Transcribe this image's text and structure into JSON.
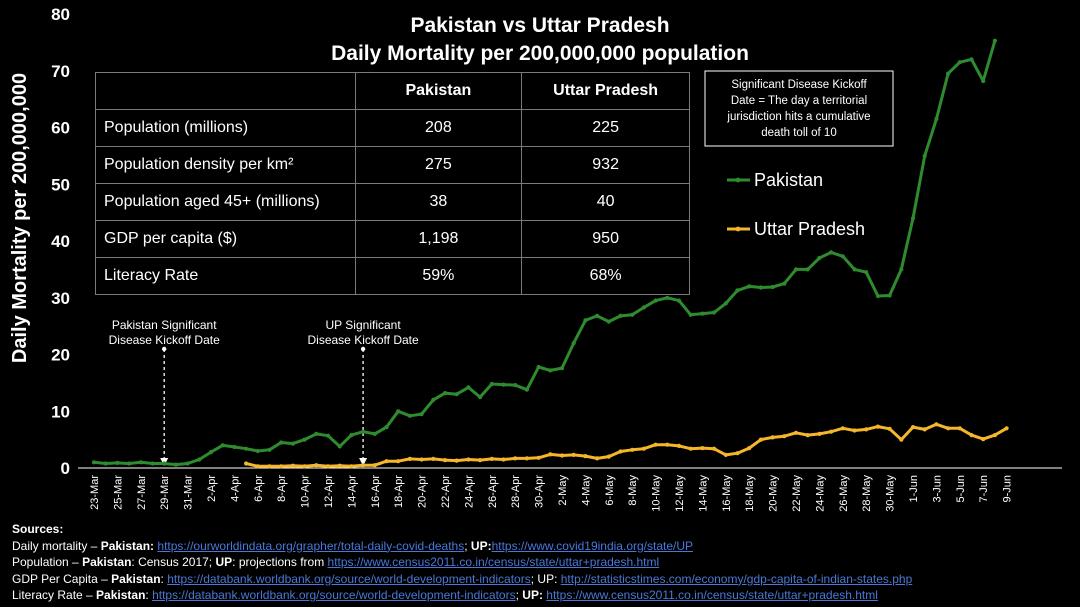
{
  "chart_data": {
    "type": "line",
    "title": "Pakistan vs Uttar Pradesh",
    "subtitle": "Daily Mortality per 200,000,000 population",
    "ylabel": "Daily Mortality per 200,000,000",
    "xlabel": "",
    "ylim": [
      0,
      80
    ],
    "yticks": [
      0,
      10,
      20,
      30,
      40,
      50,
      60,
      70,
      80
    ],
    "x_start": "2020-03-23",
    "x_end": "2020-06-10",
    "x_tick_labels": [
      "23-Mar",
      "25-Mar",
      "27-Mar",
      "29-Mar",
      "31-Mar",
      "2-Apr",
      "4-Apr",
      "6-Apr",
      "8-Apr",
      "10-Apr",
      "12-Apr",
      "14-Apr",
      "16-Apr",
      "18-Apr",
      "20-Apr",
      "22-Apr",
      "24-Apr",
      "26-Apr",
      "28-Apr",
      "30-Apr",
      "2-May",
      "4-May",
      "6-May",
      "8-May",
      "10-May",
      "12-May",
      "14-May",
      "16-May",
      "18-May",
      "20-May",
      "22-May",
      "24-May",
      "26-May",
      "28-May",
      "30-May",
      "1-Jun",
      "3-Jun",
      "5-Jun",
      "7-Jun",
      "9-Jun"
    ],
    "grid": false,
    "legend_position": "right",
    "series": [
      {
        "name": "Pakistan",
        "color": "#2e8b2e",
        "start": "2020-03-23",
        "values": [
          1.0,
          0.8,
          0.9,
          0.8,
          1.0,
          0.8,
          0.8,
          0.6,
          0.8,
          1.5,
          2.8,
          4.0,
          3.7,
          3.4,
          3.0,
          3.2,
          4.5,
          4.3,
          5.0,
          6.0,
          5.7,
          3.8,
          5.8,
          6.4,
          6.0,
          7.2,
          10.0,
          9.2,
          9.5,
          12.0,
          13.2,
          13.0,
          14.2,
          12.5,
          14.8,
          14.7,
          14.6,
          13.8,
          17.8,
          17.2,
          17.6,
          22.0,
          26.0,
          26.8,
          25.8,
          26.8,
          27.0,
          28.3,
          29.5,
          30.0,
          29.5,
          27.0,
          27.2,
          27.4,
          29.0,
          31.3,
          32.0,
          31.8,
          31.9,
          32.5,
          35.0,
          35.0,
          37.0,
          38.0,
          37.3,
          35.0,
          34.5,
          30.3,
          30.4,
          35.0,
          44.0,
          55.0,
          61.5,
          69.5,
          71.5,
          72.0,
          68.2,
          75.3
        ]
      },
      {
        "name": "Uttar Pradesh",
        "color": "#f5b62a",
        "start": "2020-04-05",
        "values": [
          0.8,
          0.3,
          0.3,
          0.3,
          0.4,
          0.3,
          0.5,
          0.3,
          0.4,
          0.3,
          0.5,
          0.5,
          1.2,
          1.2,
          1.6,
          1.5,
          1.6,
          1.4,
          1.3,
          1.5,
          1.4,
          1.6,
          1.5,
          1.7,
          1.7,
          1.8,
          2.4,
          2.2,
          2.3,
          2.1,
          1.7,
          2.0,
          2.9,
          3.2,
          3.4,
          4.1,
          4.1,
          3.9,
          3.4,
          3.5,
          3.4,
          2.3,
          2.6,
          3.5,
          5.0,
          5.4,
          5.6,
          6.2,
          5.8,
          6.0,
          6.4,
          7.0,
          6.6,
          6.8,
          7.3,
          6.9,
          5.0,
          7.2,
          6.8,
          7.7,
          7.0,
          7.0,
          5.8,
          5.1,
          5.8,
          7.0
        ]
      }
    ],
    "annotations": [
      {
        "date": "2020-03-29",
        "text_lines": [
          "Pakistan Significant",
          "Disease Kickoff Date"
        ]
      },
      {
        "date": "2020-04-15",
        "text_lines": [
          "UP Significant",
          "Disease Kickoff Date"
        ]
      }
    ],
    "definition_box": [
      "Significant Disease Kickoff",
      "Date = The day a territorial",
      "jurisdiction hits a cumulative",
      "death toll of 10"
    ]
  },
  "table": {
    "headers": [
      "",
      "Pakistan",
      "Uttar Pradesh"
    ],
    "rows": [
      [
        "Population (millions)",
        "208",
        "225"
      ],
      [
        "Population density per km²",
        "275",
        "932"
      ],
      [
        "Population aged 45+ (millions)",
        "38",
        "40"
      ],
      [
        "GDP per capita ($)",
        "1,198",
        "950"
      ],
      [
        "Literacy Rate",
        "59%",
        "68%"
      ]
    ]
  },
  "sources": {
    "heading": "Sources:",
    "lines": [
      {
        "parts": [
          {
            "t": "Daily mortality – "
          },
          {
            "t": "Pakistan:",
            "b": true
          },
          {
            "t": " "
          },
          {
            "t": "https://ourworldindata.org/grapher/total-daily-covid-deaths",
            "link": true
          },
          {
            "t": "; "
          },
          {
            "t": "UP:",
            "b": true
          },
          {
            "t": "https://www.covid19india.org/state/UP",
            "link": true
          }
        ]
      },
      {
        "parts": [
          {
            "t": "Population – "
          },
          {
            "t": "Pakistan",
            "b": true
          },
          {
            "t": ": Census 2017; "
          },
          {
            "t": "UP",
            "b": true
          },
          {
            "t": ": projections from "
          },
          {
            "t": "https://www.census2011.co.in/census/state/uttar+pradesh.html",
            "link": true
          }
        ]
      },
      {
        "parts": [
          {
            "t": "GDP Per Capita – "
          },
          {
            "t": "Pakistan",
            "b": true
          },
          {
            "t": ": "
          },
          {
            "t": "https://databank.worldbank.org/source/world-development-indicators",
            "link": true
          },
          {
            "t": "; UP: "
          },
          {
            "t": "http://statisticstimes.com/economy/gdp-capita-of-indian-states.php",
            "link": true
          }
        ]
      },
      {
        "parts": [
          {
            "t": "Literacy Rate – "
          },
          {
            "t": "Pakistan",
            "b": true
          },
          {
            "t": ": "
          },
          {
            "t": "https://databank.worldbank.org/source/world-development-indicators",
            "link": true
          },
          {
            "t": "; "
          },
          {
            "t": "UP:",
            "b": true
          },
          {
            "t": " "
          },
          {
            "t": "https://www.census2011.co.in/census/state/uttar+pradesh.html",
            "link": true
          }
        ]
      }
    ]
  }
}
